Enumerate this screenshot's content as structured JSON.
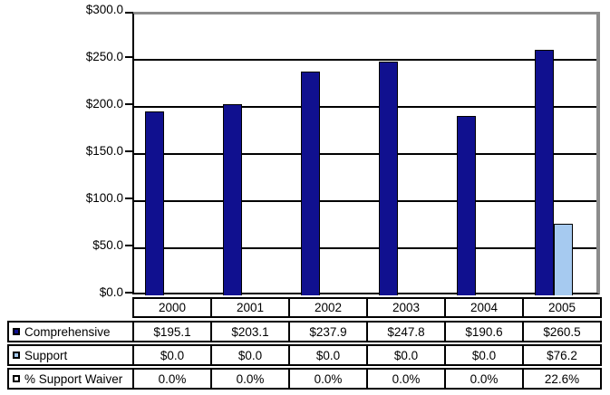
{
  "chart_data": {
    "type": "bar",
    "title": "",
    "xlabel": "",
    "ylabel": "",
    "categories": [
      "2000",
      "2001",
      "2002",
      "2003",
      "2004",
      "2005"
    ],
    "series": [
      {
        "name": "Comprehensive",
        "color": "#10108f",
        "plotted": true,
        "values": [
          195.1,
          203.1,
          237.9,
          247.8,
          190.6,
          260.5
        ],
        "display": [
          "$195.1",
          "$203.1",
          "$237.9",
          "$247.8",
          "$190.6",
          "$260.5"
        ]
      },
      {
        "name": "Support",
        "color": "#a6caf0",
        "plotted": true,
        "values": [
          0.0,
          0.0,
          0.0,
          0.0,
          0.0,
          76.2
        ],
        "display": [
          "$0.0",
          "$0.0",
          "$0.0",
          "$0.0",
          "$0.0",
          "$76.2"
        ]
      },
      {
        "name": "% Support Waiver",
        "color": "#ffffff",
        "plotted": false,
        "values": [
          0.0,
          0.0,
          0.0,
          0.0,
          0.0,
          22.6
        ],
        "display": [
          "0.0%",
          "0.0%",
          "0.0%",
          "0.0%",
          "0.0%",
          "22.6%"
        ]
      }
    ],
    "ylim": [
      0,
      300
    ],
    "ytick_step": 50,
    "ytick_labels": [
      "$0.0",
      "$50.0",
      "$100.0",
      "$150.0",
      "$200.0",
      "$250.0",
      "$300.0"
    ],
    "grid": true,
    "gridline_color": "#000000",
    "plot_frame_color": "#8c8c8c",
    "legend_position": "data-table-left"
  }
}
